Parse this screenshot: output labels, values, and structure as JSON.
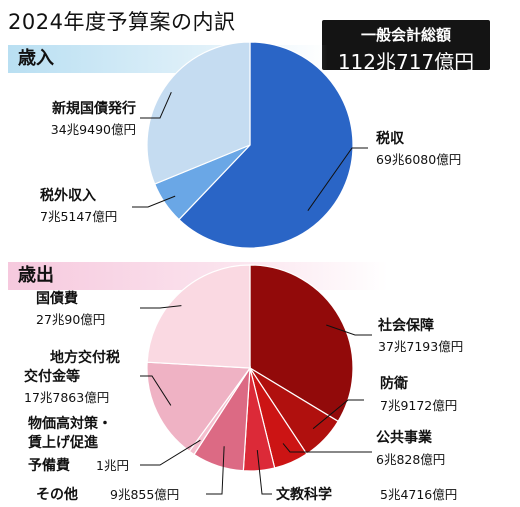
{
  "title": "2024年度予算案の内訳",
  "total": {
    "label": "一般会計総額",
    "value": "112兆717億円"
  },
  "sections": {
    "revenue": "歳入",
    "expenditure": "歳出"
  },
  "chart_data": [
    {
      "type": "pie",
      "title": "歳入",
      "unit": "億円",
      "slices": [
        {
          "name": "税収",
          "value": 696080,
          "display": "69兆6080億円",
          "color": "#2a65c6"
        },
        {
          "name": "税外収入",
          "value": 75147,
          "display": "7兆5147億円",
          "color": "#6aa7e6"
        },
        {
          "name": "新規国債発行",
          "value": 349490,
          "display": "34兆9490億円",
          "color": "#c5dcf1"
        }
      ]
    },
    {
      "type": "pie",
      "title": "歳出",
      "unit": "億円",
      "slices": [
        {
          "name": "社会保障",
          "value": 377193,
          "display": "37兆7193億円",
          "color": "#920a0a"
        },
        {
          "name": "防衛",
          "value": 79172,
          "display": "7兆9172億円",
          "color": "#b0100e"
        },
        {
          "name": "公共事業",
          "value": 60828,
          "display": "6兆828億円",
          "color": "#cc1414"
        },
        {
          "name": "文教科学",
          "value": 54716,
          "display": "5兆4716億円",
          "color": "#dc2a38"
        },
        {
          "name": "その他",
          "value": 90855,
          "display": "9兆855億円",
          "color": "#dc6a84"
        },
        {
          "name": "物価高対策・賃上げ促進予備費",
          "value": 10000,
          "display": "1兆円",
          "color": "#f4bfce"
        },
        {
          "name": "地方交付税交付金等",
          "value": 177863,
          "display": "17兆7863億円",
          "color": "#efb2c4"
        },
        {
          "name": "国債費",
          "value": 270090,
          "display": "27兆90億円",
          "color": "#fad9e2"
        }
      ]
    }
  ]
}
